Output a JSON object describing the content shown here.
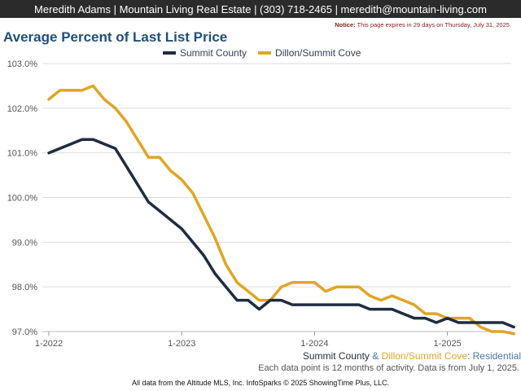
{
  "header": {
    "contact": "Meredith Adams | Mountain Living Real Estate | (303) 718-2465 | meredith@mountain-living.com"
  },
  "notice": {
    "label": "Notice:",
    "text": "This page expires in 29 days on Thursday, July 31, 2025."
  },
  "chart_data": {
    "type": "line",
    "title": "Average Percent of Last List Price",
    "xlabel": "",
    "ylabel": "",
    "ylim": [
      97.0,
      103.0
    ],
    "yticks": [
      "103.0%",
      "102.0%",
      "101.0%",
      "100.0%",
      "99.0%",
      "98.0%",
      "97.0%"
    ],
    "ytick_values": [
      103,
      102,
      101,
      100,
      99,
      98,
      97
    ],
    "xticks": [
      "1-2022",
      "1-2023",
      "1-2024",
      "1-2025"
    ],
    "x_start": "2022-01",
    "grid": "horizontal",
    "legend_position": "top-center",
    "series": [
      {
        "name": "Summit County",
        "color": "#1f2d40",
        "values": [
          101.0,
          101.1,
          101.2,
          101.3,
          101.3,
          101.2,
          101.1,
          100.7,
          100.3,
          99.9,
          99.7,
          99.5,
          99.3,
          99.0,
          98.7,
          98.3,
          98.0,
          97.7,
          97.7,
          97.5,
          97.7,
          97.7,
          97.6,
          97.6,
          97.6,
          97.6,
          97.6,
          97.6,
          97.6,
          97.5,
          97.5,
          97.5,
          97.4,
          97.3,
          97.3,
          97.2,
          97.3,
          97.2,
          97.2,
          97.2,
          97.2,
          97.2,
          97.1
        ]
      },
      {
        "name": "Dillon/Summit Cove",
        "color": "#e0a526",
        "values": [
          102.2,
          102.4,
          102.4,
          102.4,
          102.5,
          102.2,
          102.0,
          101.7,
          101.3,
          100.9,
          100.9,
          100.6,
          100.4,
          100.1,
          99.6,
          99.1,
          98.5,
          98.1,
          97.9,
          97.7,
          97.7,
          98.0,
          98.1,
          98.1,
          98.1,
          97.9,
          98.0,
          98.0,
          98.0,
          97.8,
          97.7,
          97.8,
          97.7,
          97.6,
          97.4,
          97.4,
          97.3,
          97.3,
          97.3,
          97.1,
          97.0,
          97.0,
          96.95
        ]
      }
    ]
  },
  "caption": {
    "series_a": "Summit County",
    "amp": " & ",
    "series_b": "Dillon/Summit Cove",
    "colon": ": ",
    "category": "Residential"
  },
  "footnote": "Each data point is 12 months of activity. Data is from July 1, 2025.",
  "credit": "All data from the Altitude MLS, Inc. InfoSparks © 2025 ShowingTime Plus, LLC."
}
